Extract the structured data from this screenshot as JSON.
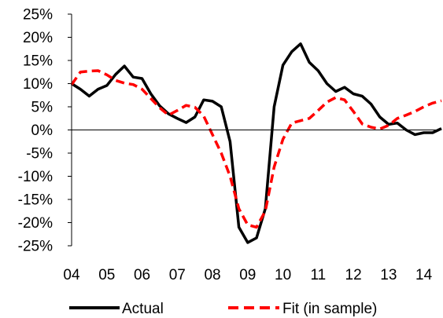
{
  "chart_data": {
    "type": "line",
    "title": "",
    "xlabel": "",
    "ylabel": "",
    "x_tick_labels": [
      "04",
      "05",
      "06",
      "07",
      "08",
      "09",
      "10",
      "11",
      "12",
      "13",
      "14"
    ],
    "x_range": [
      2004.0,
      2014.5
    ],
    "y_ticks": [
      25,
      20,
      15,
      10,
      5,
      0,
      -5,
      -10,
      -15,
      -20,
      -25
    ],
    "y_tick_labels": [
      "25%",
      "20%",
      "15%",
      "10%",
      "5%",
      "0%",
      "-5%",
      "-10%",
      "-15%",
      "-20%",
      "-25%"
    ],
    "ylim": [
      -25,
      25
    ],
    "grid": false,
    "legend_position": "bottom",
    "series": [
      {
        "name": "Actual",
        "color": "#000000",
        "dash": "solid",
        "points": [
          [
            2004.0,
            10.0
          ],
          [
            2004.25,
            8.8
          ],
          [
            2004.5,
            7.3
          ],
          [
            2004.75,
            8.8
          ],
          [
            2005.0,
            9.6
          ],
          [
            2005.25,
            12.0
          ],
          [
            2005.5,
            13.8
          ],
          [
            2005.75,
            11.4
          ],
          [
            2006.0,
            11.1
          ],
          [
            2006.25,
            7.8
          ],
          [
            2006.5,
            5.2
          ],
          [
            2006.75,
            3.5
          ],
          [
            2007.0,
            2.5
          ],
          [
            2007.25,
            1.6
          ],
          [
            2007.5,
            2.8
          ],
          [
            2007.75,
            6.5
          ],
          [
            2008.0,
            6.2
          ],
          [
            2008.25,
            5.0
          ],
          [
            2008.5,
            -2.5
          ],
          [
            2008.75,
            -21.0
          ],
          [
            2009.0,
            -24.3
          ],
          [
            2009.25,
            -23.3
          ],
          [
            2009.5,
            -17.0
          ],
          [
            2009.75,
            5.0
          ],
          [
            2010.0,
            14.0
          ],
          [
            2010.25,
            16.9
          ],
          [
            2010.5,
            18.6
          ],
          [
            2010.75,
            14.6
          ],
          [
            2011.0,
            12.8
          ],
          [
            2011.25,
            10.0
          ],
          [
            2011.5,
            8.3
          ],
          [
            2011.75,
            9.2
          ],
          [
            2012.0,
            7.8
          ],
          [
            2012.25,
            7.3
          ],
          [
            2012.5,
            5.6
          ],
          [
            2012.75,
            2.8
          ],
          [
            2013.0,
            1.2
          ],
          [
            2013.25,
            1.5
          ],
          [
            2013.5,
            0.0
          ],
          [
            2013.75,
            -1.0
          ],
          [
            2014.0,
            -0.6
          ],
          [
            2014.25,
            -0.6
          ],
          [
            2014.5,
            0.3
          ]
        ]
      },
      {
        "name": "Fit (in sample)",
        "color": "#ff0000",
        "dash": "dashed",
        "points": [
          [
            2004.0,
            9.8
          ],
          [
            2004.25,
            12.5
          ],
          [
            2004.5,
            12.7
          ],
          [
            2004.75,
            12.8
          ],
          [
            2005.0,
            11.9
          ],
          [
            2005.25,
            10.7
          ],
          [
            2005.5,
            10.1
          ],
          [
            2005.75,
            9.8
          ],
          [
            2006.0,
            8.8
          ],
          [
            2006.25,
            6.8
          ],
          [
            2006.5,
            4.8
          ],
          [
            2006.75,
            3.2
          ],
          [
            2007.0,
            4.2
          ],
          [
            2007.25,
            5.3
          ],
          [
            2007.5,
            4.9
          ],
          [
            2007.75,
            3.0
          ],
          [
            2008.0,
            -1.0
          ],
          [
            2008.25,
            -5.0
          ],
          [
            2008.5,
            -10.0
          ],
          [
            2008.75,
            -17.0
          ],
          [
            2009.0,
            -20.5
          ],
          [
            2009.25,
            -21.0
          ],
          [
            2009.5,
            -17.5
          ],
          [
            2009.75,
            -8.0
          ],
          [
            2010.0,
            -2.0
          ],
          [
            2010.25,
            1.5
          ],
          [
            2010.5,
            2.0
          ],
          [
            2010.75,
            2.5
          ],
          [
            2011.0,
            4.2
          ],
          [
            2011.25,
            6.0
          ],
          [
            2011.5,
            7.0
          ],
          [
            2011.75,
            6.5
          ],
          [
            2012.0,
            4.0
          ],
          [
            2012.25,
            1.3
          ],
          [
            2012.5,
            0.6
          ],
          [
            2012.75,
            0.2
          ],
          [
            2013.0,
            1.0
          ],
          [
            2013.25,
            2.5
          ],
          [
            2013.5,
            3.2
          ],
          [
            2013.75,
            4.0
          ],
          [
            2014.0,
            5.0
          ],
          [
            2014.25,
            5.8
          ],
          [
            2014.5,
            6.3
          ]
        ]
      }
    ]
  }
}
